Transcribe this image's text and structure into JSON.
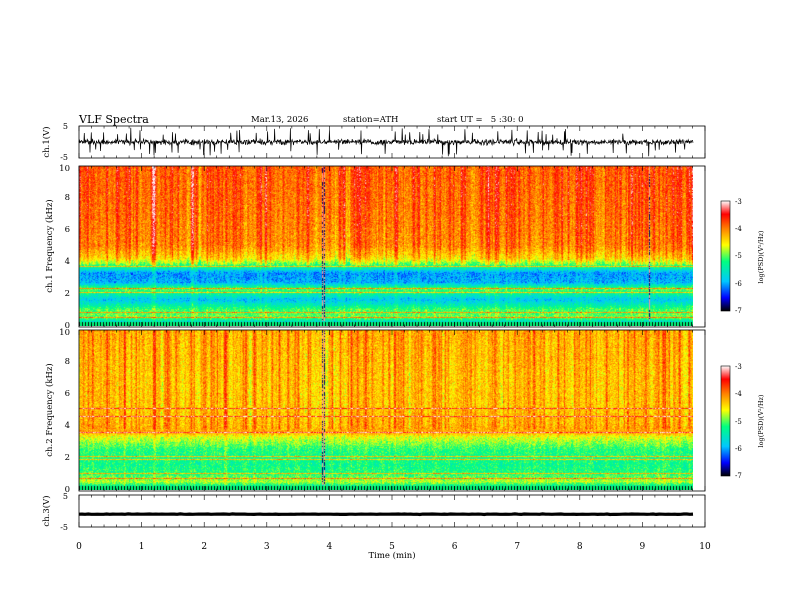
{
  "header": {
    "title": "VLF Spectra",
    "date": "Mar.13, 2026",
    "station": "station=ATH",
    "start_ut": "start UT =   5 :30: 0"
  },
  "chart_data": [
    {
      "type": "line",
      "name": "ch1-waveform",
      "ylabel": "ch.1(V)",
      "ylim": [
        -5,
        5
      ],
      "yticks": [
        "5",
        "-5"
      ],
      "xlim": [
        0,
        10
      ],
      "description_values": {
        "baseline": 0.0,
        "noise_amplitude": 1.5,
        "spike_amplitude": 4.5
      }
    },
    {
      "type": "heatmap",
      "name": "ch1-spectrogram",
      "ylabel": "ch.1 Frequency (kHz)",
      "ylim": [
        0,
        10
      ],
      "yticks": [
        "0",
        "2",
        "4",
        "6",
        "8",
        "10"
      ],
      "xlim": [
        0,
        10
      ],
      "zlim": [
        -7,
        -3
      ],
      "profile": [
        [
          0,
          -6.3
        ],
        [
          0.5,
          -5.0
        ],
        [
          1.0,
          -5.1
        ],
        [
          1.6,
          -5.9
        ],
        [
          2.3,
          -5.0
        ],
        [
          2.7,
          -6.0
        ],
        [
          3.3,
          -6.1
        ],
        [
          3.8,
          -5.1
        ],
        [
          4.2,
          -4.5
        ],
        [
          5.0,
          -4.1
        ],
        [
          7.0,
          -4.0
        ],
        [
          10.0,
          -3.9
        ]
      ],
      "lines_khz": [
        0.5,
        0.8,
        2.1,
        2.3,
        3.7
      ],
      "dark_columns_min": [
        3.88,
        3.92,
        9.1
      ]
    },
    {
      "type": "heatmap",
      "name": "ch2-spectrogram",
      "ylabel": "ch.2 Frequency (kHz)",
      "ylim": [
        0,
        10
      ],
      "yticks": [
        "0",
        "2",
        "4",
        "6",
        "8",
        "10"
      ],
      "xlim": [
        0,
        10
      ],
      "zlim": [
        -7,
        -3
      ],
      "profile": [
        [
          0,
          -5.8
        ],
        [
          0.5,
          -4.8
        ],
        [
          1.0,
          -5.2
        ],
        [
          1.6,
          -5.3
        ],
        [
          2.5,
          -5.2
        ],
        [
          3.3,
          -4.7
        ],
        [
          3.6,
          -4.2
        ],
        [
          4.0,
          -4.3
        ],
        [
          5.0,
          -4.4
        ],
        [
          7.0,
          -4.4
        ],
        [
          10.0,
          -4.3
        ]
      ],
      "lines_khz": [
        0.7,
        1.0,
        1.9,
        2.1,
        3.6,
        4.6,
        5.1
      ],
      "dark_columns_min": [
        3.88,
        3.92
      ]
    },
    {
      "type": "line",
      "name": "ch3-waveform",
      "ylabel": "ch.3(V)",
      "ylim": [
        -5,
        5
      ],
      "yticks": [
        "5",
        "-5"
      ],
      "xlim": [
        0,
        10
      ],
      "description_values": {
        "baseline": -1.0,
        "noise_amplitude": 0.2
      }
    }
  ],
  "xaxis": {
    "label": "Time (min)",
    "ticks": [
      "0",
      "1",
      "2",
      "3",
      "4",
      "5",
      "6",
      "7",
      "8",
      "9",
      "10"
    ],
    "range": [
      0,
      10
    ]
  },
  "colorbar": {
    "label": "log(PSD)(V²/Hz)",
    "ticks": [
      "-3",
      "-4",
      "-5",
      "-6",
      "-7"
    ],
    "range": [
      -7,
      -3
    ],
    "stops": [
      "#000000",
      "#0000ff",
      "#00c8ff",
      "#00ff80",
      "#ffff00",
      "#ff7f00",
      "#ff0000",
      "#ffffff"
    ]
  }
}
